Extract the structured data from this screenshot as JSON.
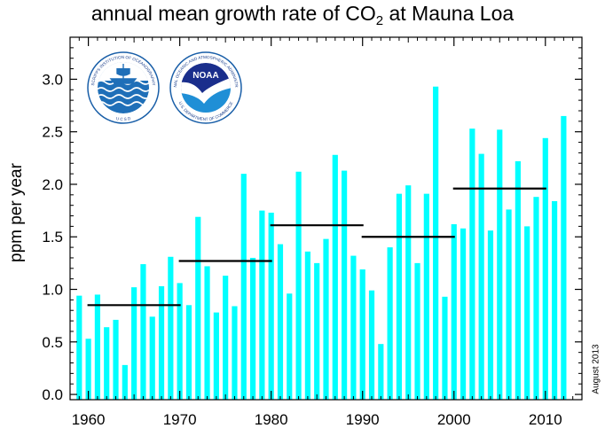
{
  "chart_data": {
    "type": "bar",
    "title_prefix": "annual mean growth rate of CO",
    "title_subscript": "2",
    "title_suffix": " at Mauna Loa",
    "xlabel": "",
    "ylabel": "ppm per year",
    "xlim": [
      1958,
      2014
    ],
    "ylim": [
      -0.05,
      3.4
    ],
    "xticks": [
      1960,
      1970,
      1980,
      1990,
      2000,
      2010
    ],
    "yticks": [
      "0.0",
      "0.5",
      "1.0",
      "1.5",
      "2.0",
      "2.5",
      "3.0"
    ],
    "bar_color": "#00ffff",
    "mean_line_color": "#000000",
    "grid": false,
    "years": [
      1959,
      1960,
      1961,
      1962,
      1963,
      1964,
      1965,
      1966,
      1967,
      1968,
      1969,
      1970,
      1971,
      1972,
      1973,
      1974,
      1975,
      1976,
      1977,
      1978,
      1979,
      1980,
      1981,
      1982,
      1983,
      1984,
      1985,
      1986,
      1987,
      1988,
      1989,
      1990,
      1991,
      1992,
      1993,
      1994,
      1995,
      1996,
      1997,
      1998,
      1999,
      2000,
      2001,
      2002,
      2003,
      2004,
      2005,
      2006,
      2007,
      2008,
      2009,
      2010,
      2011,
      2012
    ],
    "values": [
      0.94,
      0.53,
      0.95,
      0.64,
      0.71,
      0.28,
      1.02,
      1.24,
      0.74,
      1.03,
      1.31,
      1.06,
      0.85,
      1.69,
      1.22,
      0.78,
      1.13,
      0.84,
      2.1,
      1.3,
      1.75,
      1.73,
      1.43,
      0.96,
      2.12,
      1.36,
      1.25,
      1.48,
      2.28,
      2.13,
      1.32,
      1.19,
      0.99,
      0.48,
      1.4,
      1.91,
      1.99,
      1.25,
      1.91,
      2.93,
      0.93,
      1.62,
      1.58,
      2.53,
      2.29,
      1.56,
      2.52,
      1.76,
      2.22,
      1.6,
      1.88,
      2.44,
      1.84,
      2.65
    ],
    "decade_means": [
      {
        "start": 1960,
        "end": 1970,
        "value": 0.85
      },
      {
        "start": 1970,
        "end": 1980,
        "value": 1.27
      },
      {
        "start": 1980,
        "end": 1990,
        "value": 1.61
      },
      {
        "start": 1990,
        "end": 2000,
        "value": 1.5
      },
      {
        "start": 2000,
        "end": 2010,
        "value": 1.96
      }
    ]
  },
  "logos": {
    "scripps_text": "SCRIPPS INSTITUTION OF OCEANOGRAPHY",
    "scripps_bottom": "U C S D",
    "noaa_label": "NOAA",
    "noaa_ring_text": "NATIONAL OCEANIC AND ATMOSPHERIC ADMINISTRATION",
    "noaa_bottom": "U.S. DEPARTMENT OF COMMERCE"
  },
  "stamp": "August 2013"
}
